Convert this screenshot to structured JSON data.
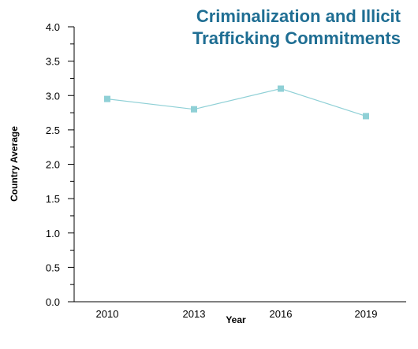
{
  "chart_data": {
    "type": "line",
    "title_lines": [
      "Criminalization and Illicit",
      "Trafficking Commitments"
    ],
    "xlabel": "Year",
    "ylabel": "Country Average",
    "categories": [
      "2010",
      "2013",
      "2016",
      "2019"
    ],
    "series": [
      {
        "values": [
          2.95,
          2.8,
          3.1,
          2.7
        ]
      }
    ],
    "ylim": [
      0,
      4
    ],
    "y_major_ticks": [
      0.0,
      0.5,
      1.0,
      1.5,
      2.0,
      2.5,
      3.0,
      3.5,
      4.0
    ],
    "y_tick_labels": [
      "0.0",
      "0.5",
      "1.0",
      "1.5",
      "2.0",
      "2.5",
      "3.0",
      "3.5",
      "4.0"
    ],
    "grid": false,
    "legend": "none",
    "colors": {
      "title": "#1f6e93",
      "series": "#8fd0d6",
      "marker": "#8fd0d6",
      "axis": "#000000"
    }
  }
}
